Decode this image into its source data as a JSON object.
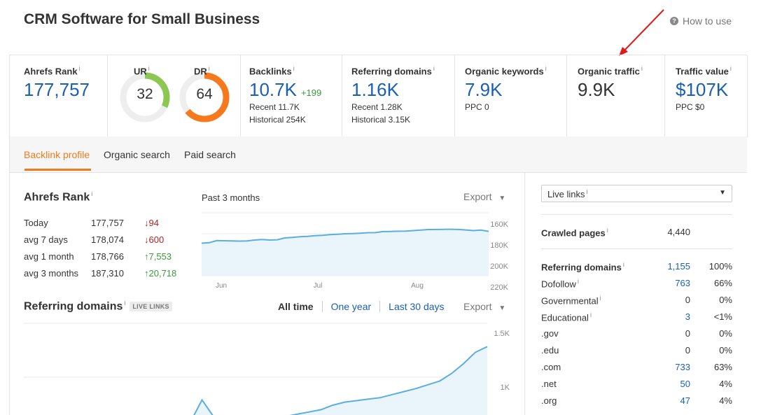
{
  "header": {
    "title": "CRM Software for Small Business",
    "how_to_use": "How to use"
  },
  "metrics": {
    "info": "i",
    "ahrefs_rank": {
      "label": "Ahrefs Rank",
      "value": "177,757"
    },
    "ur": {
      "label": "UR",
      "value": "32",
      "level": 0.32,
      "color": "#8cc751"
    },
    "dr": {
      "label": "DR",
      "value": "64",
      "level": 0.64,
      "color": "#f7791e"
    },
    "backlinks": {
      "label": "Backlinks",
      "value": "10.7K",
      "change": "+199",
      "recent": "Recent 11.7K",
      "historical": "Historical 254K"
    },
    "referring_domains": {
      "label": "Referring domains",
      "value": "1.16K",
      "recent": "Recent 1.28K",
      "historical": "Historical 3.15K"
    },
    "organic_keywords": {
      "label": "Organic keywords",
      "value": "7.9K",
      "ppc": "PPC 0"
    },
    "organic_traffic": {
      "label": "Organic traffic",
      "value": "9.9K"
    },
    "traffic_value": {
      "label": "Traffic value",
      "value": "$107K",
      "ppc": "PPC $0"
    }
  },
  "tabs": [
    {
      "label": "Backlink profile",
      "active": true
    },
    {
      "label": "Organic search",
      "active": false
    },
    {
      "label": "Paid search",
      "active": false
    }
  ],
  "rank_section": {
    "title": "Ahrefs Rank",
    "period": "Past 3 months",
    "export": "Export",
    "rows": [
      {
        "label": "Today",
        "value": "177,757",
        "change": "94",
        "dir": "down"
      },
      {
        "label": "avg 7 days",
        "value": "178,074",
        "change": "600",
        "dir": "down"
      },
      {
        "label": "avg 1 month",
        "value": "178,766",
        "change": "7,553",
        "dir": "up"
      },
      {
        "label": "avg 3 months",
        "value": "187,310",
        "change": "20,718",
        "dir": "up"
      }
    ]
  },
  "refdomains_section": {
    "title": "Referring domains",
    "badge": "LIVE LINKS",
    "filters": [
      "All time",
      "One year",
      "Last 30 days"
    ],
    "active_filter": "All time",
    "export": "Export"
  },
  "right_panel": {
    "select_value": "Live links",
    "crawled_pages": {
      "label": "Crawled pages",
      "value": "4,440"
    },
    "rows": [
      {
        "label": "Referring domains",
        "value": "1,155",
        "pct": "100%",
        "bold": true,
        "link": true,
        "info": true
      },
      {
        "label": "Dofollow",
        "value": "763",
        "pct": "66%",
        "link": true,
        "info": true
      },
      {
        "label": "Governmental",
        "value": "0",
        "pct": "0%",
        "link": false,
        "info": true
      },
      {
        "label": "Educational",
        "value": "3",
        "pct": "<1%",
        "link": true,
        "info": true
      },
      {
        "label": ".gov",
        "value": "0",
        "pct": "0%",
        "link": false,
        "info": false
      },
      {
        "label": ".edu",
        "value": "0",
        "pct": "0%",
        "link": false,
        "info": false
      },
      {
        "label": ".com",
        "value": "733",
        "pct": "63%",
        "link": true,
        "info": false
      },
      {
        "label": ".net",
        "value": "50",
        "pct": "4%",
        "link": true,
        "info": false
      },
      {
        "label": ".org",
        "value": "47",
        "pct": "4%",
        "link": true,
        "info": false
      }
    ]
  },
  "chart_data": [
    {
      "type": "area",
      "title": "Ahrefs Rank",
      "x_ticks": [
        "Jun",
        "Jul",
        "Aug"
      ],
      "y_ticks": [
        "160K",
        "180K",
        "200K",
        "220K"
      ],
      "ylim": [
        220000,
        160000
      ],
      "reversed_y": true,
      "color": "#5aaee0",
      "series": [
        {
          "values": [
            189000,
            188500,
            186500,
            186700,
            186800,
            187000,
            186900,
            186000,
            185500,
            186000,
            185700,
            184000,
            183500,
            182800,
            182500,
            181800,
            181500,
            180800,
            180500,
            180000,
            179800,
            179500,
            179000,
            178900,
            177900,
            177800,
            177600,
            177500,
            177000,
            176500,
            176000,
            175900,
            175800,
            175700,
            175900,
            176400,
            177000,
            176500,
            177757
          ]
        }
      ]
    },
    {
      "type": "area",
      "title": "Referring domains",
      "y_ticks": [
        "1.5K",
        "1K"
      ],
      "color": "#5aaee0",
      "series": [
        {
          "values": [
            0,
            0,
            0,
            0,
            0,
            0,
            0,
            0,
            10,
            30,
            60,
            80,
            100,
            120,
            150,
            450,
            220,
            130,
            150,
            140,
            160,
            190,
            230,
            260,
            290,
            320,
            380,
            420,
            440,
            460,
            480,
            520,
            560,
            600,
            650,
            700,
            800,
            930,
            1080,
            1155
          ]
        }
      ]
    }
  ]
}
